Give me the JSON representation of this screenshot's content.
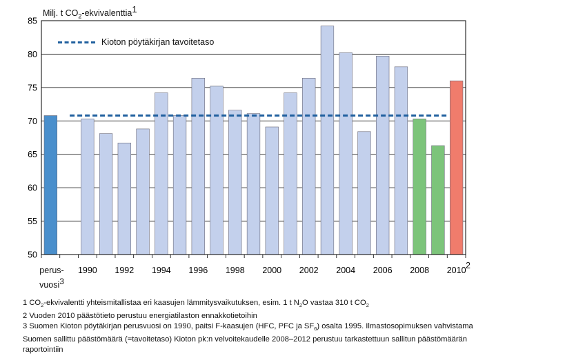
{
  "chart_data": {
    "type": "bar",
    "ylabel_prefix": "Milj. t CO",
    "ylabel_sub": "2",
    "ylabel_suffix": "-ekvivalenttia",
    "ylabel_sup": "1",
    "ylim": [
      50,
      85
    ],
    "yticks": [
      50,
      55,
      60,
      65,
      70,
      75,
      80,
      85
    ],
    "grid": true,
    "categories": [
      "perusvuosi",
      "gap",
      "1990",
      "1991",
      "1992",
      "1993",
      "1994",
      "1995",
      "1996",
      "1997",
      "1998",
      "1999",
      "2000",
      "2001",
      "2002",
      "2003",
      "2004",
      "2005",
      "2006",
      "2007",
      "2008",
      "2009",
      "2010"
    ],
    "values": [
      70.8,
      null,
      70.3,
      68.1,
      66.7,
      68.8,
      74.2,
      70.8,
      76.4,
      75.2,
      71.6,
      71.1,
      69.1,
      74.2,
      76.4,
      84.2,
      80.2,
      68.4,
      79.7,
      78.1,
      70.3,
      66.3,
      76.0
    ],
    "bar_colors": [
      "#4a8fcc",
      "none",
      "#c3d0ec",
      "#c3d0ec",
      "#c3d0ec",
      "#c3d0ec",
      "#c3d0ec",
      "#c3d0ec",
      "#c3d0ec",
      "#c3d0ec",
      "#c3d0ec",
      "#c3d0ec",
      "#c3d0ec",
      "#c3d0ec",
      "#c3d0ec",
      "#c3d0ec",
      "#c3d0ec",
      "#c3d0ec",
      "#c3d0ec",
      "#c3d0ec",
      "#7cc47a",
      "#7cc47a",
      "#f07c6c"
    ],
    "xtick_labels": [
      {
        "index": 2,
        "label": "1990"
      },
      {
        "index": 4,
        "label": "1992"
      },
      {
        "index": 6,
        "label": "1994"
      },
      {
        "index": 8,
        "label": "1996"
      },
      {
        "index": 10,
        "label": "1998"
      },
      {
        "index": 12,
        "label": "2000"
      },
      {
        "index": 14,
        "label": "2002"
      },
      {
        "index": 16,
        "label": "2004"
      },
      {
        "index": 18,
        "label": "2006"
      },
      {
        "index": 20,
        "label": "2008"
      },
      {
        "index": 22,
        "label": "2010"
      }
    ],
    "base_label_line1": "perus-",
    "base_label_line2": "vuosi",
    "base_label_sup": "3",
    "x2010_sup": "2",
    "target_line": {
      "value": 70.8,
      "label": "Kioton pöytäkirjan tavoitetaso",
      "color": "#1f5f9e"
    }
  },
  "footnotes": {
    "f1_a": "1 CO",
    "f1_sub1": "2",
    "f1_b": "-ekvivalentti yhteismitallistaa eri kaasujen lämmitysvaikutuksen, esim. 1 t N",
    "f1_sub2": "2",
    "f1_c": "O vastaa 310 t CO",
    "f1_sub3": "2",
    "f2": "2 Vuoden 2010 päästötieto perustuu energiatilaston ennakkotietoihin",
    "f3_a": "3 Suomen Kioton pöytäkirjan perusvuosi on 1990, paitsi F-kaasujen (HFC, PFC ja SF",
    "f3_sub": "6",
    "f3_b": ") osalta  1995. Ilmastosopimuksen vahvistama",
    "f3_line2": "Suomen sallittu päästömäärä (=tavoitetaso) Kioton pk:n  velvoitekaudelle 2008–2012 perustuu tarkastettuun sallitun päästömäärän",
    "f3_line3": "raportointiin"
  }
}
